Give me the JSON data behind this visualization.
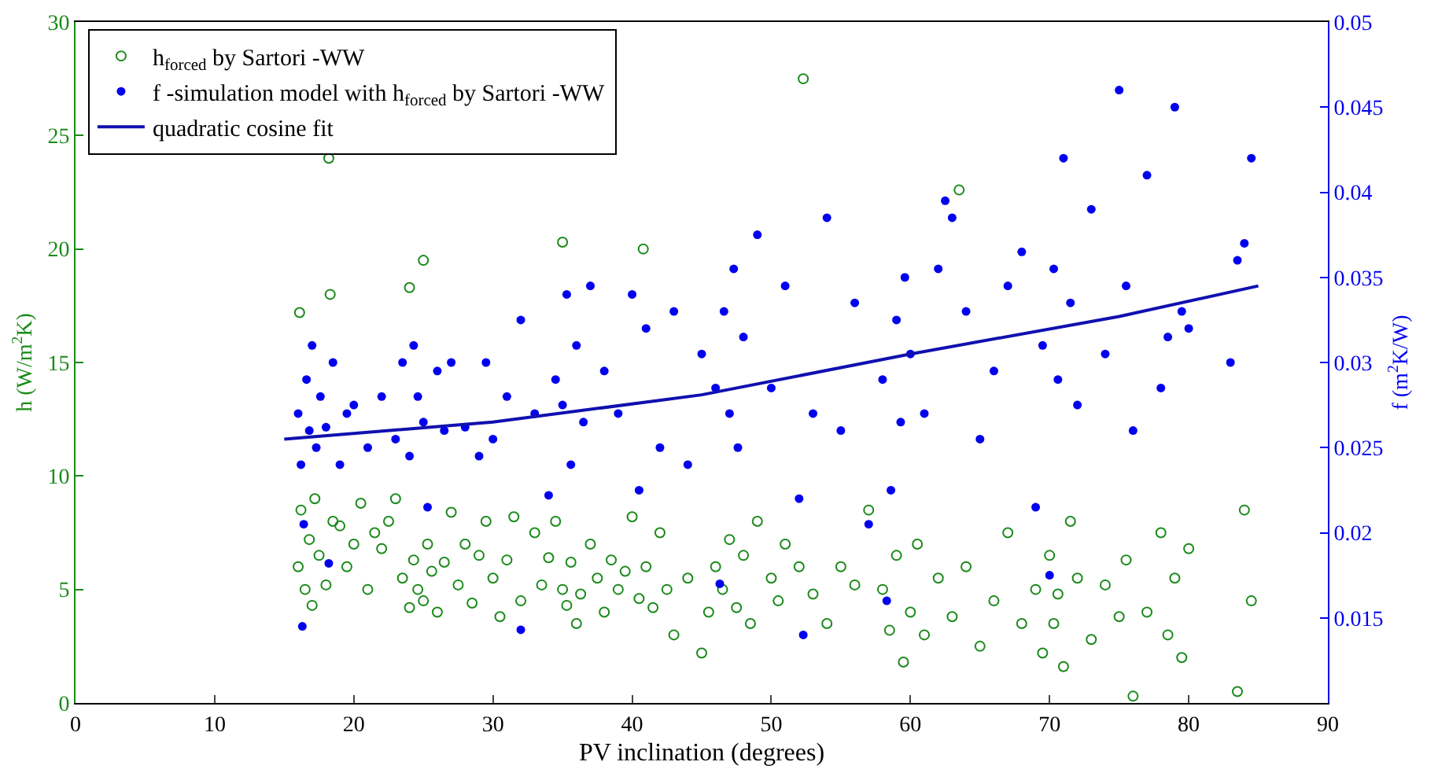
{
  "chart_data": {
    "type": "scatter",
    "xlabel": "PV inclination (degrees)",
    "ylabel": "h (W/m$^{2}$K)",
    "y2label": "f (m$^{2}$K/W)",
    "xlim": [
      0,
      90
    ],
    "xticks": [
      0,
      10,
      20,
      30,
      40,
      50,
      60,
      70,
      80,
      90
    ],
    "ylim": [
      0,
      30
    ],
    "yticks": [
      0,
      5,
      10,
      15,
      20,
      25,
      30
    ],
    "y2lim": [
      0.01,
      0.05
    ],
    "y2ticks": [
      0.015,
      0.02,
      0.025,
      0.03,
      0.035,
      0.04,
      0.045,
      0.05
    ],
    "grid": false,
    "legend": "top left",
    "series": [
      {
        "name": "h$_{forced}$ by Sartori -WW",
        "marker": "circle",
        "color": "#1a8a1a",
        "x": [
          16,
          16.2,
          16.5,
          16.8,
          17,
          17.2,
          17.5,
          18,
          18.2,
          18.5,
          19,
          19.5,
          20,
          20.5,
          21,
          21.5,
          22,
          22.5,
          23,
          23.5,
          24,
          24.3,
          24.6,
          25,
          25.3,
          25.6,
          26,
          26.5,
          27,
          27.5,
          28,
          28.5,
          29,
          29.5,
          30,
          30.5,
          31,
          31.5,
          32,
          33,
          33.5,
          34,
          34.5,
          35,
          35.3,
          35.6,
          36,
          36.3,
          37,
          37.5,
          38,
          38.5,
          39,
          39.5,
          40,
          40.5,
          41,
          41.5,
          42,
          42.5,
          43,
          44,
          45,
          45.5,
          46,
          46.5,
          47,
          47.5,
          48,
          48.5,
          49,
          50,
          50.5,
          51,
          52,
          52.3,
          53,
          54,
          55,
          56,
          57,
          58,
          58.5,
          59,
          59.5,
          60,
          60.5,
          61,
          62,
          63,
          63.5,
          64,
          65,
          66,
          67,
          68,
          69,
          69.5,
          70,
          70.3,
          70.6,
          71,
          71.5,
          72,
          73,
          74,
          75,
          75.5,
          76,
          77,
          78,
          78.5,
          79,
          79.5,
          80,
          83.5,
          84,
          84.5,
          16.1,
          18.3,
          24,
          25,
          35,
          40.8
        ],
        "values": [
          6,
          8.5,
          5,
          7.2,
          4.3,
          9,
          6.5,
          5.2,
          24,
          8,
          7.8,
          6,
          7,
          8.8,
          5,
          7.5,
          6.8,
          8,
          9,
          5.5,
          4.2,
          6.3,
          5,
          4.5,
          7,
          5.8,
          4,
          6.2,
          8.4,
          5.2,
          7,
          4.4,
          6.5,
          8,
          5.5,
          3.8,
          6.3,
          8.2,
          4.5,
          7.5,
          5.2,
          6.4,
          8,
          5,
          4.3,
          6.2,
          3.5,
          4.8,
          7,
          5.5,
          4,
          6.3,
          5,
          5.8,
          8.2,
          4.6,
          6,
          4.2,
          7.5,
          5,
          3,
          5.5,
          2.2,
          4,
          6,
          5,
          7.2,
          4.2,
          6.5,
          3.5,
          8,
          5.5,
          4.5,
          7,
          6,
          27.5,
          4.8,
          3.5,
          6,
          5.2,
          8.5,
          5,
          3.2,
          6.5,
          1.8,
          4,
          7,
          3,
          5.5,
          3.8,
          22.6,
          6,
          2.5,
          4.5,
          7.5,
          3.5,
          5,
          2.2,
          6.5,
          3.5,
          4.8,
          1.6,
          8,
          5.5,
          2.8,
          5.2,
          3.8,
          6.3,
          0.3,
          4,
          7.5,
          3,
          5.5,
          2,
          6.8,
          0.5,
          8.5,
          4.5,
          17.2,
          18,
          18.3,
          19.5,
          20.3,
          20
        ]
      },
      {
        "name": "f -simulation model with h$_{forced}$ by Sartori -WW",
        "marker": "circle",
        "axis": "y2",
        "color": "#0000ee",
        "x": [
          16,
          16.2,
          16.4,
          16.6,
          16.8,
          17,
          17.3,
          17.6,
          18,
          18.5,
          19,
          19.5,
          20,
          21,
          22,
          23,
          23.5,
          24,
          24.3,
          24.6,
          25,
          25.3,
          26,
          26.5,
          27,
          28,
          29,
          29.5,
          30,
          31,
          32,
          33,
          34,
          34.5,
          35,
          35.3,
          35.6,
          36,
          36.5,
          37,
          38,
          39,
          40,
          40.5,
          41,
          42,
          43,
          44,
          45,
          46,
          46.3,
          46.6,
          47,
          47.3,
          47.6,
          48,
          49,
          50,
          51,
          52,
          53,
          54,
          55,
          56,
          57,
          58,
          58.3,
          58.6,
          59,
          59.3,
          59.6,
          60,
          61,
          62,
          62.5,
          63,
          64,
          65,
          66,
          67,
          68,
          69,
          69.5,
          70,
          70.3,
          70.6,
          71,
          71.5,
          72,
          73,
          74,
          75,
          75.5,
          76,
          77,
          78,
          78.5,
          79,
          79.5,
          80,
          83,
          83.5,
          84,
          84.5,
          16.3,
          18.2,
          32,
          52.3
        ],
        "values": [
          0.027,
          0.024,
          0.0205,
          0.029,
          0.026,
          0.031,
          0.025,
          0.028,
          0.0262,
          0.03,
          0.024,
          0.027,
          0.0275,
          0.025,
          0.028,
          0.0255,
          0.03,
          0.0245,
          0.031,
          0.028,
          0.0265,
          0.0215,
          0.0295,
          0.026,
          0.03,
          0.0262,
          0.0245,
          0.03,
          0.0255,
          0.028,
          0.0325,
          0.027,
          0.0222,
          0.029,
          0.0275,
          0.034,
          0.024,
          0.031,
          0.0265,
          0.0345,
          0.0295,
          0.027,
          0.034,
          0.0225,
          0.032,
          0.025,
          0.033,
          0.024,
          0.0305,
          0.0285,
          0.017,
          0.033,
          0.027,
          0.0355,
          0.025,
          0.0315,
          0.0375,
          0.0285,
          0.0345,
          0.022,
          0.027,
          0.0385,
          0.026,
          0.0335,
          0.0205,
          0.029,
          0.016,
          0.0225,
          0.0325,
          0.0265,
          0.035,
          0.0305,
          0.027,
          0.0355,
          0.0395,
          0.0385,
          0.033,
          0.0255,
          0.0295,
          0.0345,
          0.0365,
          0.0215,
          0.031,
          0.0175,
          0.0355,
          0.029,
          0.042,
          0.0335,
          0.0275,
          0.039,
          0.0305,
          0.046,
          0.0345,
          0.026,
          0.041,
          0.0285,
          0.0315,
          0.045,
          0.033,
          0.032,
          0.03,
          0.036,
          0.037,
          0.042,
          0.0145,
          0.0182,
          0.0143,
          0.014
        ]
      },
      {
        "name": "quadratic cosine fit",
        "type": "line",
        "marker": "none",
        "line_style": "solid",
        "axis": "y2",
        "color": "#1010b0",
        "x": [
          15,
          30,
          45,
          60,
          75,
          85
        ],
        "values": [
          0.0255,
          0.0265,
          0.0281,
          0.0305,
          0.0327,
          0.0345
        ]
      }
    ]
  }
}
